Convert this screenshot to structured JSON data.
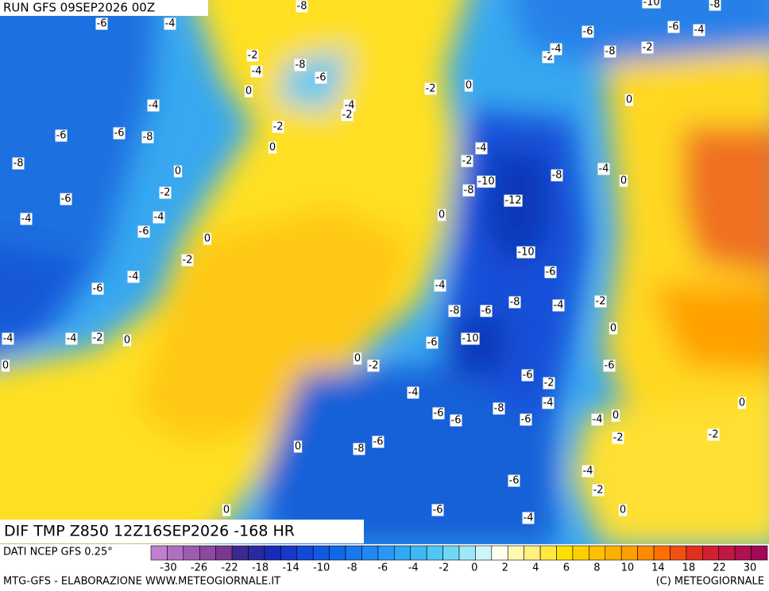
{
  "header": {
    "run": "RUN GFS 09SEP2026 00Z"
  },
  "map": {
    "title": "DIF TMP Z850 12Z16SEP2026 -168 HR",
    "contour_labels": [
      -6,
      -4,
      -8,
      -2,
      -4,
      -8,
      -6,
      0,
      -4,
      -4,
      -2,
      -2,
      0,
      -6,
      -6,
      -8,
      -8,
      0,
      -2,
      -6,
      -4,
      -4,
      -6,
      0,
      -2,
      -4,
      -6,
      -4,
      -4,
      -2,
      0,
      0,
      -2,
      0,
      -4,
      -2,
      -10,
      -8,
      -12,
      0,
      -8,
      -4,
      0,
      -10,
      -6,
      -4,
      -8,
      -6,
      -8,
      -4,
      -2,
      0,
      -6,
      -10,
      -2,
      0,
      -4,
      -6,
      -6,
      -8,
      -6,
      -2,
      -4,
      -6,
      -6,
      -4,
      0,
      -2,
      -2,
      0,
      -6,
      -8,
      0,
      -4,
      -2,
      -6,
      -6,
      -4,
      0,
      0,
      -6,
      -6,
      -4,
      -8,
      -2,
      -2,
      -4,
      0,
      -8,
      -10
    ]
  },
  "colorbar": {
    "colors": [
      "#c080d0",
      "#b070c0",
      "#9c5cb0",
      "#8a4aa0",
      "#783890",
      "#3a2a90",
      "#2a2aa0",
      "#1a2ab8",
      "#1838c8",
      "#1448d8",
      "#1058e0",
      "#1068e8",
      "#1878ec",
      "#2088f0",
      "#2898f4",
      "#30a8f4",
      "#40b8f4",
      "#50c8f4",
      "#70d8f4",
      "#a0e8f8",
      "#d0f4fc",
      "#fffff0",
      "#fff8b0",
      "#fff080",
      "#ffe840",
      "#ffe000",
      "#ffd000",
      "#ffc000",
      "#ffb000",
      "#ffa000",
      "#ff8c00",
      "#ff7000",
      "#f05010",
      "#e03020",
      "#d02030",
      "#c01840",
      "#b01050",
      "#a00858"
    ],
    "ticks": [
      -30,
      -26,
      -22,
      -18,
      -14,
      -10,
      -8,
      -6,
      -4,
      -2,
      0,
      2,
      4,
      6,
      8,
      10,
      14,
      18,
      22,
      30
    ]
  },
  "footer": {
    "source": "DATI NCEP GFS 0.25°",
    "credit": "MTG-GFS - ELABORAZIONE WWW.METEOGIORNALE.IT",
    "copyright": "(C) METEOGIORNALE"
  }
}
